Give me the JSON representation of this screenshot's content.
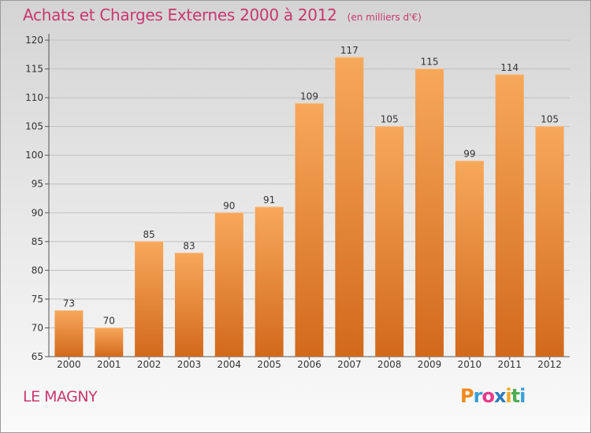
{
  "header": {
    "title": "Achats et Charges Externes 2000 à 2012",
    "subtitle": "(en milliers d'€)"
  },
  "location": "LE MAGNY",
  "logo": {
    "text": "Proxiti",
    "colors": [
      "#f08a1e",
      "#3aa0d8",
      "#e8388a",
      "#2e7bbf",
      "#f4a71f",
      "#4caf50",
      "#3aa0d8"
    ]
  },
  "colors": {
    "title": "#c8386e",
    "bar_light": "#f7a85a",
    "bar_dark": "#d2691c"
  },
  "chart_data": {
    "type": "bar",
    "categories": [
      "2000",
      "2001",
      "2002",
      "2003",
      "2004",
      "2005",
      "2006",
      "2007",
      "2008",
      "2009",
      "2010",
      "2011",
      "2012"
    ],
    "values": [
      73,
      70,
      85,
      83,
      90,
      91,
      109,
      117,
      105,
      115,
      99,
      114,
      105
    ],
    "title": "Achats et Charges Externes 2000 à 2012",
    "subtitle": "(en milliers d'€)",
    "xlabel": "",
    "ylabel": "",
    "ylim": [
      65,
      120
    ],
    "yticks": [
      65,
      70,
      75,
      80,
      85,
      90,
      95,
      100,
      105,
      110,
      115,
      120
    ],
    "grid": true,
    "data_labels": true
  }
}
